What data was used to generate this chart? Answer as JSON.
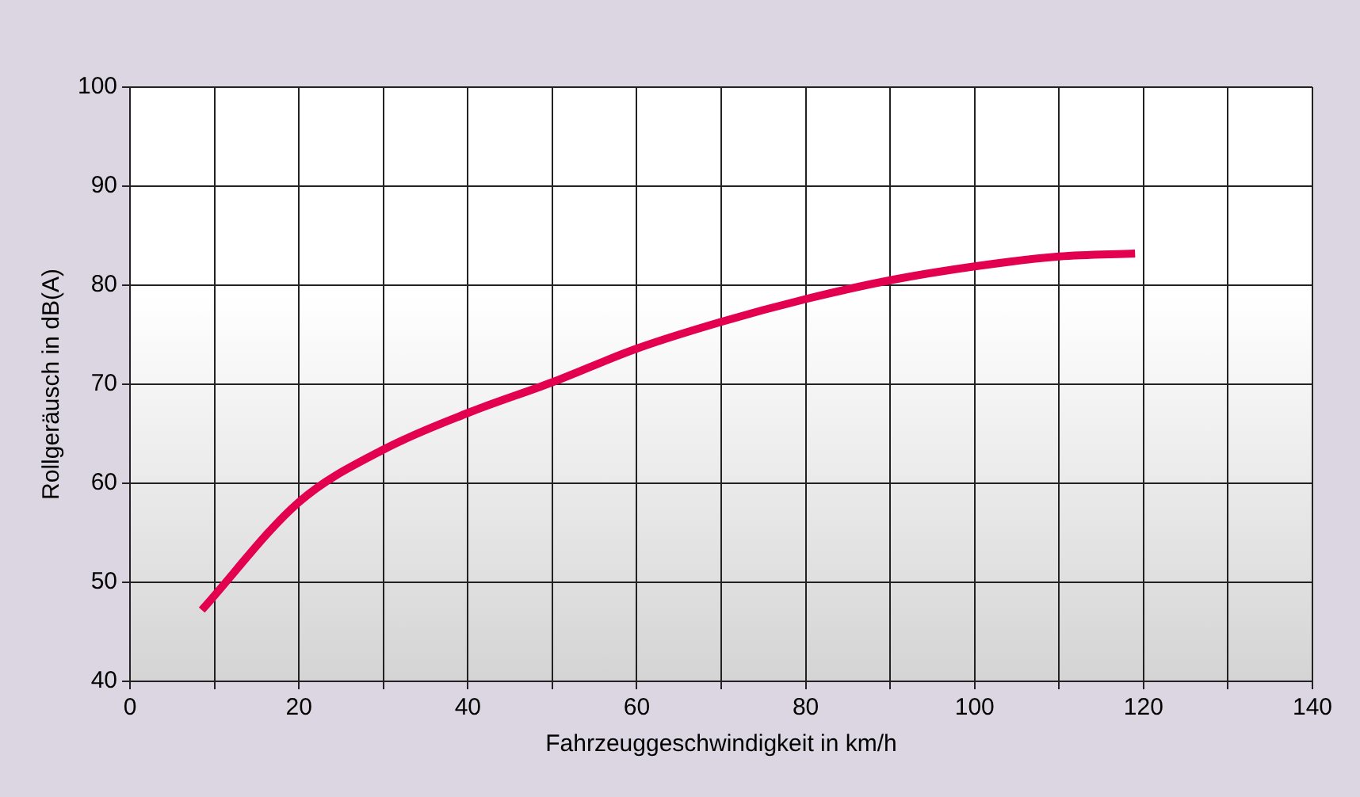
{
  "chart_data": {
    "type": "line",
    "xlabel": "Fahrzeuggeschwindigkeit in km/h",
    "ylabel": "Rollgeräusch in dB(A)",
    "x": [
      8.5,
      20,
      30,
      40,
      50,
      60,
      70,
      80,
      90,
      100,
      110,
      119
    ],
    "series": [
      {
        "color": "#e2004f",
        "values": [
          47.2,
          58.1,
          63.4,
          67.1,
          70.2,
          73.6,
          76.3,
          78.6,
          80.5,
          81.9,
          82.9,
          83.2
        ]
      }
    ],
    "xlim": [
      0,
      140
    ],
    "xticks": [
      0,
      {
        "value": 10,
        "label": null
      },
      20,
      {
        "value": 30,
        "label": null
      },
      40,
      {
        "value": 50,
        "label": null
      },
      60,
      {
        "value": 70,
        "label": null
      },
      80,
      {
        "value": 90,
        "label": null
      },
      100,
      {
        "value": 110,
        "label": null
      },
      120,
      {
        "value": 130,
        "label": null
      },
      140
    ],
    "ylim": [
      40,
      100
    ],
    "yticks": [
      40,
      50,
      60,
      70,
      80,
      90,
      100
    ],
    "grid": true,
    "marker": "none",
    "line_style": "solid",
    "legend": false
  }
}
